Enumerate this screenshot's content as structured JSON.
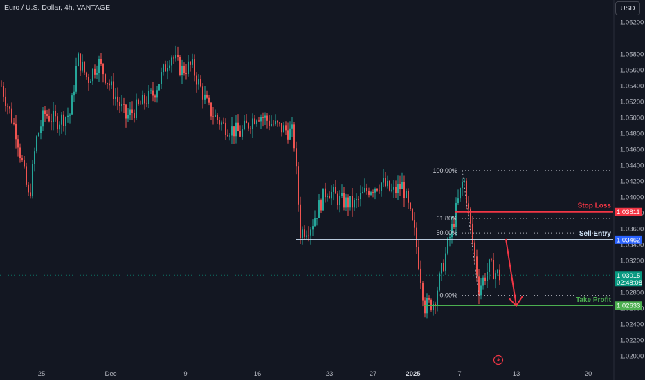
{
  "header": {
    "title": "Euro / U.S. Dollar, 4h, VANTAGE",
    "currency_button": "USD"
  },
  "colors": {
    "background": "#131722",
    "up": "#26a69a",
    "down": "#ef5350",
    "sell_entry": "#cfe3f7",
    "stop_loss": "#f23645",
    "take_profit": "#4caf50",
    "current_price": "#089981"
  },
  "chart_data": {
    "type": "candlestick",
    "ylim": [
      1.015,
      1.0645
    ],
    "y_ticks": [
      "1.06200",
      "1.05800",
      "1.05600",
      "1.05400",
      "1.05200",
      "1.05000",
      "1.04800",
      "1.04600",
      "1.04400",
      "1.04200",
      "1.04000",
      "1.03800",
      "1.03600",
      "1.03400",
      "1.03200",
      "1.02800",
      "1.02600",
      "1.02400",
      "1.02200",
      "1.02000"
    ],
    "x_ticks": [
      "25",
      "Dec",
      "9",
      "16",
      "23",
      "27",
      "2025",
      "7",
      "13",
      "20"
    ],
    "path_points": [
      {
        "t": 0,
        "p": 1.054
      },
      {
        "t": 22,
        "p": 1.048
      },
      {
        "t": 40,
        "p": 1.0395
      },
      {
        "t": 50,
        "p": 1.047
      },
      {
        "t": 62,
        "p": 1.0505
      },
      {
        "t": 80,
        "p": 1.0495
      },
      {
        "t": 100,
        "p": 1.0505
      },
      {
        "t": 110,
        "p": 1.0575
      },
      {
        "t": 125,
        "p": 1.0548
      },
      {
        "t": 140,
        "p": 1.057
      },
      {
        "t": 160,
        "p": 1.0535
      },
      {
        "t": 180,
        "p": 1.05
      },
      {
        "t": 200,
        "p": 1.0515
      },
      {
        "t": 220,
        "p": 1.053
      },
      {
        "t": 245,
        "p": 1.058
      },
      {
        "t": 260,
        "p": 1.056
      },
      {
        "t": 275,
        "p": 1.0565
      },
      {
        "t": 300,
        "p": 1.051
      },
      {
        "t": 320,
        "p": 1.049
      },
      {
        "t": 345,
        "p": 1.048
      },
      {
        "t": 370,
        "p": 1.0505
      },
      {
        "t": 395,
        "p": 1.049
      },
      {
        "t": 422,
        "p": 1.048
      },
      {
        "t": 432,
        "p": 1.0355
      },
      {
        "t": 448,
        "p": 1.0365
      },
      {
        "t": 470,
        "p": 1.041
      },
      {
        "t": 490,
        "p": 1.0395
      },
      {
        "t": 510,
        "p": 1.039
      },
      {
        "t": 530,
        "p": 1.041
      },
      {
        "t": 550,
        "p": 1.0418
      },
      {
        "t": 565,
        "p": 1.0405
      },
      {
        "t": 580,
        "p": 1.0415
      },
      {
        "t": 598,
        "p": 1.035
      },
      {
        "t": 612,
        "p": 1.0262
      },
      {
        "t": 625,
        "p": 1.0268
      },
      {
        "t": 640,
        "p": 1.032
      },
      {
        "t": 655,
        "p": 1.0375
      },
      {
        "t": 668,
        "p": 1.0425
      },
      {
        "t": 678,
        "p": 1.0362
      },
      {
        "t": 690,
        "p": 1.0285
      },
      {
        "t": 705,
        "p": 1.0312
      },
      {
        "t": 720,
        "p": 1.03
      }
    ],
    "fib_levels": [
      {
        "label": "100.00%",
        "price": 1.04332
      },
      {
        "label": "61.80%",
        "price": 1.0373
      },
      {
        "label": "50.00%",
        "price": 1.03547
      },
      {
        "label": "0.00%",
        "price": 1.0276
      }
    ],
    "annotations": [
      {
        "label": "Stop Loss",
        "price": 1.03811,
        "tag": "1.03811"
      },
      {
        "label": "Sell Entry",
        "price": 1.03462,
        "tag": "1.03462"
      },
      {
        "label": "Take Profit",
        "price": 1.02633,
        "tag": "1.02633"
      }
    ],
    "current_price": {
      "price": 1.03015,
      "tag": "1.03015",
      "countdown": "02:48:08"
    }
  }
}
